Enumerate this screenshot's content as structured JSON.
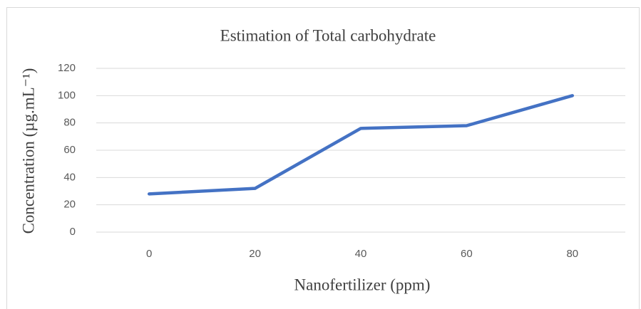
{
  "chart_data": {
    "type": "line",
    "title": "Estimation of Total carbohydrate",
    "x_label": "Nanofertilizer (ppm)",
    "y_label": "Concentration (µg.mL⁻¹)",
    "categories": [
      "0",
      "20",
      "40",
      "60",
      "80"
    ],
    "series": [
      {
        "name": "Total carbohydrate",
        "color": "#4472c4",
        "values": [
          28,
          32,
          76,
          78,
          100
        ]
      }
    ],
    "ylim": [
      0,
      120
    ],
    "yticks": [
      0,
      20,
      40,
      60,
      80,
      100,
      120
    ],
    "grid": true
  }
}
